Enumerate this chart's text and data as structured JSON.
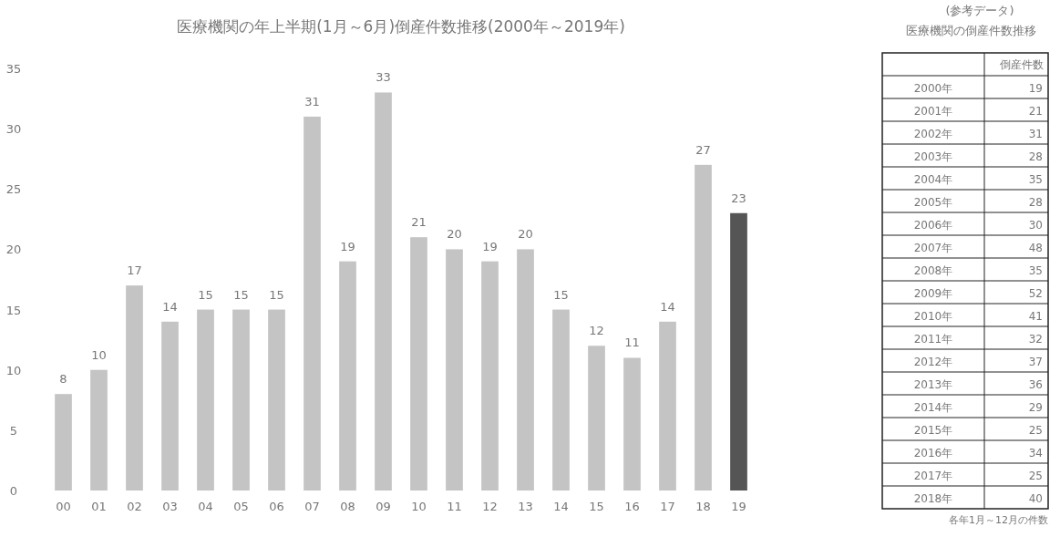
{
  "chart_data": [
    {
      "type": "bar",
      "title": "医療機関の年上半期(1月～6月)倒産件数推移(2000年～2019年)",
      "categories": [
        "00",
        "01",
        "02",
        "03",
        "04",
        "05",
        "06",
        "07",
        "08",
        "09",
        "10",
        "11",
        "12",
        "13",
        "14",
        "15",
        "16",
        "17",
        "18",
        "19"
      ],
      "values": [
        8,
        10,
        17,
        14,
        15,
        15,
        15,
        31,
        19,
        33,
        21,
        20,
        19,
        20,
        15,
        12,
        11,
        14,
        27,
        23
      ],
      "colors": [
        "#c4c4c4",
        "#c4c4c4",
        "#c4c4c4",
        "#c4c4c4",
        "#c4c4c4",
        "#c4c4c4",
        "#c4c4c4",
        "#c4c4c4",
        "#c4c4c4",
        "#c4c4c4",
        "#c4c4c4",
        "#c4c4c4",
        "#c4c4c4",
        "#c4c4c4",
        "#c4c4c4",
        "#c4c4c4",
        "#c4c4c4",
        "#c4c4c4",
        "#c4c4c4",
        "#555555"
      ],
      "ylim": [
        0,
        35
      ],
      "yticks": [
        0,
        5,
        10,
        15,
        20,
        25,
        30,
        35
      ],
      "data_labels": true,
      "grid": false
    },
    {
      "type": "heatmap",
      "title": "(参考データ)",
      "subtitle": "医療機関の倒産件数推移",
      "categories": [
        "倒産件数"
      ],
      "y_categories": [
        "2000年",
        "2001年",
        "2002年",
        "2003年",
        "2004年",
        "2005年",
        "2006年",
        "2007年",
        "2008年",
        "2009年",
        "2010年",
        "2011年",
        "2012年",
        "2013年",
        "2014年",
        "2015年",
        "2016年",
        "2017年",
        "2018年"
      ],
      "cells": [
        [
          19
        ],
        [
          21
        ],
        [
          31
        ],
        [
          28
        ],
        [
          35
        ],
        [
          28
        ],
        [
          30
        ],
        [
          48
        ],
        [
          35
        ],
        [
          52
        ],
        [
          41
        ],
        [
          32
        ],
        [
          37
        ],
        [
          36
        ],
        [
          29
        ],
        [
          25
        ],
        [
          34
        ],
        [
          25
        ],
        [
          40
        ]
      ],
      "data_labels": true,
      "annotations": [
        "各年1月～12月の件数"
      ]
    }
  ]
}
